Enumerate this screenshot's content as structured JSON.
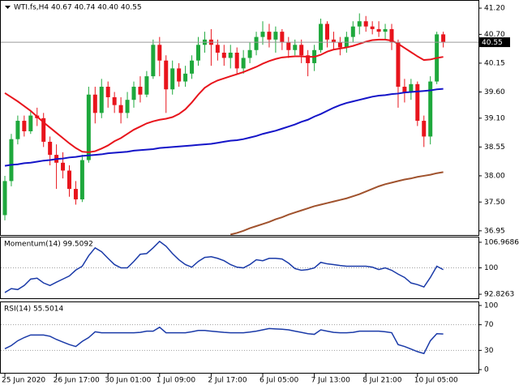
{
  "chart_data": [
    {
      "type": "candlestick",
      "title": "WTI.fs,H4  40.67 40.74 40.40 40.55",
      "up_color": "#1ea83c",
      "down_color": "#e8141c",
      "open": [
        37.25,
        37.9,
        38.7,
        39.05,
        38.85,
        39.15,
        39.1,
        38.65,
        38.4,
        38.25,
        38.1,
        37.75,
        37.55,
        38.3,
        39.55,
        39.2,
        39.7,
        39.5,
        39.35,
        39.2,
        39.45,
        39.7,
        39.55,
        39.9,
        40.5,
        40.2,
        39.65,
        40.05,
        39.8,
        39.95,
        40.2,
        40.5,
        40.6,
        40.5,
        40.35,
        40.25,
        40.35,
        40.05,
        40.25,
        40.4,
        40.65,
        40.75,
        40.6,
        40.75,
        40.55,
        40.4,
        40.5,
        40.3,
        40.15,
        40.4,
        40.9,
        40.6,
        40.55,
        40.45,
        40.65,
        40.85,
        40.95,
        40.85,
        40.8,
        40.75,
        40.8,
        40.55,
        39.7,
        39.6,
        39.75,
        39.05,
        38.75,
        39.8,
        40.7
      ],
      "high": [
        38.0,
        38.8,
        39.15,
        39.15,
        39.25,
        39.3,
        39.2,
        38.75,
        38.6,
        38.45,
        38.2,
        37.9,
        38.4,
        39.7,
        39.7,
        39.85,
        39.8,
        39.6,
        39.5,
        39.6,
        39.8,
        39.9,
        40.0,
        40.6,
        40.65,
        40.3,
        40.2,
        40.15,
        40.1,
        40.3,
        40.65,
        40.75,
        40.8,
        40.6,
        40.5,
        40.5,
        40.45,
        40.4,
        40.55,
        40.75,
        40.95,
        40.9,
        40.85,
        40.8,
        40.65,
        40.6,
        40.6,
        40.4,
        40.5,
        41.0,
        40.95,
        40.75,
        40.65,
        40.75,
        40.95,
        41.1,
        41.05,
        40.95,
        40.95,
        40.9,
        40.9,
        40.6,
        39.85,
        39.85,
        39.8,
        39.15,
        39.9,
        40.75,
        40.75
      ],
      "low": [
        37.15,
        37.8,
        38.6,
        38.75,
        38.8,
        38.95,
        38.55,
        38.2,
        37.75,
        37.95,
        37.6,
        37.45,
        37.5,
        38.25,
        39.0,
        39.1,
        39.3,
        39.2,
        39.0,
        39.1,
        39.3,
        39.4,
        39.5,
        39.85,
        39.9,
        39.2,
        39.55,
        39.7,
        39.7,
        39.85,
        40.1,
        40.35,
        40.1,
        40.2,
        40.1,
        40.05,
        39.95,
        39.95,
        40.15,
        40.3,
        40.5,
        40.45,
        40.35,
        40.4,
        40.25,
        40.3,
        40.15,
        39.9,
        40.0,
        40.35,
        40.45,
        40.4,
        40.3,
        40.35,
        40.55,
        40.7,
        40.75,
        40.7,
        40.65,
        40.6,
        40.4,
        39.3,
        39.4,
        39.45,
        38.95,
        38.55,
        38.6,
        39.75,
        40.45
      ],
      "close": [
        37.9,
        38.7,
        39.05,
        38.85,
        39.15,
        39.1,
        38.65,
        38.4,
        38.25,
        38.1,
        37.75,
        37.55,
        38.3,
        39.55,
        39.2,
        39.7,
        39.5,
        39.35,
        39.2,
        39.45,
        39.7,
        39.55,
        39.9,
        40.5,
        40.2,
        39.65,
        40.05,
        39.8,
        39.95,
        40.2,
        40.5,
        40.6,
        40.5,
        40.35,
        40.25,
        40.35,
        40.05,
        40.25,
        40.4,
        40.65,
        40.75,
        40.6,
        40.75,
        40.55,
        40.4,
        40.5,
        40.3,
        40.15,
        40.4,
        40.9,
        40.6,
        40.55,
        40.45,
        40.65,
        40.85,
        40.95,
        40.85,
        40.8,
        40.75,
        40.8,
        40.55,
        39.7,
        39.6,
        39.75,
        39.05,
        38.75,
        39.8,
        40.7,
        40.55
      ],
      "overlays": [
        {
          "color": "#e8141c",
          "values": [
            39.58,
            39.5,
            39.42,
            39.33,
            39.24,
            39.13,
            39.02,
            38.92,
            38.82,
            38.72,
            38.62,
            38.53,
            38.46,
            38.45,
            38.47,
            38.52,
            38.58,
            38.66,
            38.72,
            38.8,
            38.88,
            38.94,
            39.0,
            39.04,
            39.07,
            39.09,
            39.12,
            39.18,
            39.27,
            39.4,
            39.55,
            39.68,
            39.76,
            39.82,
            39.86,
            39.9,
            39.94,
            39.98,
            40.03,
            40.08,
            40.14,
            40.19,
            40.23,
            40.26,
            40.27,
            40.28,
            40.28,
            40.27,
            40.27,
            40.31,
            40.37,
            40.41,
            40.43,
            40.45,
            40.48,
            40.52,
            40.56,
            40.59,
            40.6,
            40.6,
            40.58,
            40.52,
            40.44,
            40.36,
            40.28,
            40.21,
            40.22,
            40.25,
            40.27
          ]
        },
        {
          "color": "#1414c8",
          "values": [
            38.19,
            38.21,
            38.22,
            38.24,
            38.25,
            38.27,
            38.29,
            38.3,
            38.32,
            38.33,
            38.35,
            38.36,
            38.38,
            38.39,
            38.4,
            38.41,
            38.43,
            38.44,
            38.45,
            38.46,
            38.48,
            38.49,
            38.5,
            38.51,
            38.53,
            38.54,
            38.55,
            38.56,
            38.57,
            38.58,
            38.59,
            38.6,
            38.61,
            38.63,
            38.65,
            38.67,
            38.68,
            38.7,
            38.73,
            38.76,
            38.8,
            38.83,
            38.86,
            38.9,
            38.94,
            38.98,
            39.03,
            39.07,
            39.13,
            39.18,
            39.24,
            39.3,
            39.35,
            39.39,
            39.42,
            39.45,
            39.48,
            39.51,
            39.53,
            39.54,
            39.56,
            39.57,
            39.59,
            39.6,
            39.61,
            39.62,
            39.63,
            39.65,
            39.66
          ]
        },
        {
          "color": "#a0522d",
          "values": [
            null,
            null,
            null,
            null,
            null,
            null,
            null,
            null,
            null,
            null,
            null,
            null,
            null,
            null,
            null,
            null,
            null,
            null,
            null,
            null,
            null,
            null,
            null,
            null,
            null,
            null,
            null,
            null,
            null,
            null,
            null,
            null,
            null,
            null,
            null,
            36.88,
            36.91,
            36.95,
            37.0,
            37.04,
            37.08,
            37.12,
            37.17,
            37.21,
            37.26,
            37.3,
            37.34,
            37.38,
            37.42,
            37.45,
            37.48,
            37.51,
            37.54,
            37.57,
            37.61,
            37.65,
            37.7,
            37.75,
            37.8,
            37.84,
            37.87,
            37.9,
            37.93,
            37.95,
            37.98,
            38.0,
            38.02,
            38.05,
            38.07
          ]
        }
      ],
      "last_price": 40.55,
      "ylim": [
        36.87,
        41.34
      ],
      "yticks": [
        {
          "value": 41.2,
          "label": "41.20"
        },
        {
          "value": 40.7,
          "label": "40.70"
        },
        40.15,
        {
          "value": 39.6,
          "label": "39.60"
        },
        {
          "value": 39.1,
          "label": "39.10"
        },
        38.55,
        {
          "value": 38.0,
          "label": "38.00"
        },
        {
          "value": 37.5,
          "label": "37.50"
        },
        36.95
      ]
    },
    {
      "type": "line",
      "title": "Momentum(14) 99.5092",
      "color": "#1a3aa8",
      "values": [
        93.3,
        94.35,
        94.1,
        95.2,
        96.95,
        97.2,
        95.9,
        95.2,
        96.1,
        96.95,
        97.8,
        99.4,
        100.45,
        103.3,
        105.45,
        104.4,
        102.6,
        100.9,
        100.0,
        100.0,
        101.75,
        103.7,
        103.9,
        105.45,
        107.2,
        105.9,
        103.9,
        102.2,
        100.9,
        100.2,
        101.75,
        102.85,
        103.05,
        102.6,
        101.95,
        100.9,
        100.2,
        100.0,
        100.9,
        102.2,
        101.95,
        102.6,
        102.6,
        102.4,
        101.3,
        99.8,
        99.35,
        99.55,
        100.0,
        101.5,
        101.1,
        100.9,
        100.65,
        100.45,
        100.45,
        100.45,
        100.45,
        100.2,
        99.55,
        100.0,
        99.35,
        98.3,
        97.4,
        95.9,
        95.45,
        94.8,
        97.4,
        100.45,
        99.51
      ],
      "ylim": [
        91.74,
        108.28
      ],
      "yticks": [
        106.9686,
        100,
        92.8263
      ]
    },
    {
      "type": "line",
      "title": "RSI(14) 55.5014",
      "color": "#1a3aa8",
      "values": [
        32.5,
        37.5,
        45,
        50,
        54,
        54,
        54,
        52,
        47,
        43,
        39,
        36,
        44,
        50,
        59,
        57.5,
        57.5,
        57.5,
        57.5,
        57.5,
        57.5,
        58,
        60,
        60,
        66,
        57.5,
        57.5,
        57.5,
        57.5,
        59,
        61,
        61,
        60,
        59,
        58,
        57.5,
        57.5,
        57.5,
        58.5,
        60,
        62,
        64,
        63.5,
        63,
        62,
        60,
        58,
        56,
        55,
        62,
        60,
        58,
        57.5,
        57.5,
        58,
        60,
        60,
        60,
        60,
        59,
        57.5,
        39,
        36,
        32,
        28,
        25,
        45,
        56,
        55.5
      ],
      "ylim": [
        -5,
        105
      ],
      "yticks": [
        100,
        70,
        30,
        0
      ],
      "categories": [
        "25 Jun 2020",
        null,
        null,
        null,
        null,
        null,
        null,
        null,
        "26 Jun 17:00",
        null,
        null,
        null,
        null,
        null,
        null,
        null,
        "30 Jun 01:00",
        null,
        null,
        null,
        null,
        null,
        null,
        null,
        "1 Jul 09:00",
        null,
        null,
        null,
        null,
        null,
        null,
        null,
        "2 Jul 17:00",
        null,
        null,
        null,
        null,
        null,
        null,
        null,
        "6 Jul 05:00",
        null,
        null,
        null,
        null,
        null,
        null,
        null,
        "7 Jul 13:00",
        null,
        null,
        null,
        null,
        null,
        null,
        null,
        "8 Jul 21:00",
        null,
        null,
        null,
        null,
        null,
        null,
        null,
        "10 Jul 05:00",
        null,
        null,
        null,
        null
      ]
    }
  ]
}
